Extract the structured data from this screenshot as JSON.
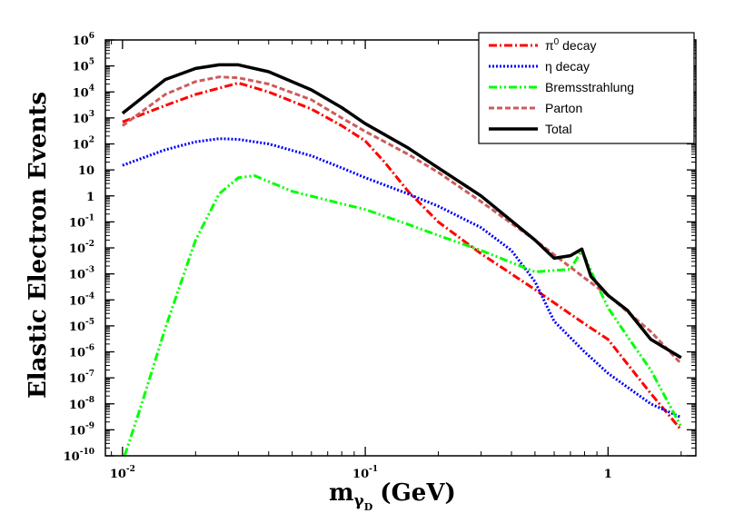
{
  "chart_data": {
    "type": "line",
    "xscale": "log",
    "yscale": "log",
    "xlim": [
      0.0085,
      2.3
    ],
    "ylim": [
      1e-10,
      1000000.0
    ],
    "xlabel": {
      "main": "m",
      "sub1": "γ",
      "sub2": "D",
      "unit": "(GeV)"
    },
    "ylabel": "Elastic Electron Events",
    "x_ticks": [
      {
        "value": 0.01,
        "base": "10",
        "exp": "-2"
      },
      {
        "value": 0.1,
        "base": "10",
        "exp": "-1"
      },
      {
        "value": 1,
        "base": "1",
        "exp": ""
      }
    ],
    "y_ticks": [
      {
        "value": 1000000.0,
        "base": "10",
        "exp": "6"
      },
      {
        "value": 100000.0,
        "base": "10",
        "exp": "5"
      },
      {
        "value": 10000.0,
        "base": "10",
        "exp": "4"
      },
      {
        "value": 1000.0,
        "base": "10",
        "exp": "3"
      },
      {
        "value": 100.0,
        "base": "10",
        "exp": "2"
      },
      {
        "value": 10,
        "base": "10",
        "exp": ""
      },
      {
        "value": 1,
        "base": "1",
        "exp": ""
      },
      {
        "value": 0.1,
        "base": "10",
        "exp": "-1"
      },
      {
        "value": 0.01,
        "base": "10",
        "exp": "-2"
      },
      {
        "value": 0.001,
        "base": "10",
        "exp": "-3"
      },
      {
        "value": 0.0001,
        "base": "10",
        "exp": "-4"
      },
      {
        "value": 1e-05,
        "base": "10",
        "exp": "-5"
      },
      {
        "value": 1e-06,
        "base": "10",
        "exp": "-6"
      },
      {
        "value": 1e-07,
        "base": "10",
        "exp": "-7"
      },
      {
        "value": 1e-08,
        "base": "10",
        "exp": "-8"
      },
      {
        "value": 1e-09,
        "base": "10",
        "exp": "-9"
      },
      {
        "value": 1e-10,
        "base": "10",
        "exp": "-10"
      }
    ],
    "legend_position": "top-right",
    "series": [
      {
        "key": "pi0",
        "name_prefix": "π",
        "name_sup": "0",
        "name_suffix": " decay",
        "color": "#ff0000",
        "dash": "9,3,2,3",
        "x": [
          0.01,
          0.015,
          0.02,
          0.025,
          0.03,
          0.04,
          0.06,
          0.08,
          0.1,
          0.12,
          0.15,
          0.2,
          0.3,
          0.5,
          0.8,
          1.0,
          1.5,
          2.0
        ],
        "y": [
          700,
          3000,
          8000,
          14000,
          22000,
          10000,
          2200,
          500,
          130,
          20,
          1.5,
          0.1,
          0.006,
          0.00025,
          1.2e-05,
          3e-06,
          2.5e-08,
          1e-09
        ]
      },
      {
        "key": "eta",
        "name_prefix": "η",
        "name_sup": "",
        "name_suffix": " decay",
        "color": "#0000ff",
        "dash": "2,2",
        "x": [
          0.01,
          0.015,
          0.02,
          0.025,
          0.03,
          0.04,
          0.06,
          0.08,
          0.1,
          0.15,
          0.2,
          0.3,
          0.4,
          0.5,
          0.6,
          0.8,
          1.0,
          1.5,
          2.0
        ],
        "y": [
          15,
          60,
          120,
          160,
          150,
          100,
          35,
          12,
          5,
          1.2,
          0.4,
          0.06,
          0.008,
          0.0005,
          1.5e-05,
          1e-06,
          1.5e-07,
          1e-08,
          3e-09
        ]
      },
      {
        "key": "brems",
        "name_prefix": "Bremsstrahlung",
        "name_sup": "",
        "name_suffix": "",
        "color": "#00ff00",
        "dash": "9,3,2,3,2,3",
        "x": [
          0.0102,
          0.012,
          0.015,
          0.02,
          0.025,
          0.03,
          0.035,
          0.05,
          0.08,
          0.1,
          0.15,
          0.2,
          0.3,
          0.5,
          0.7,
          0.78,
          0.9,
          1.0,
          1.2,
          1.5,
          2.0
        ],
        "y": [
          1e-10,
          1e-08,
          8e-06,
          0.02,
          1.2,
          5,
          6,
          1.5,
          0.5,
          0.3,
          0.08,
          0.03,
          0.008,
          0.0012,
          0.0015,
          0.008,
          0.0004,
          5e-05,
          4e-06,
          2e-07,
          1.3e-09
        ]
      },
      {
        "key": "parton",
        "name_prefix": "Parton",
        "name_sup": "",
        "name_suffix": "",
        "color": "#cd5c5c",
        "dash": "6,3",
        "x": [
          0.01,
          0.015,
          0.02,
          0.025,
          0.03,
          0.04,
          0.06,
          0.08,
          0.1,
          0.15,
          0.2,
          0.3,
          0.5,
          0.8,
          1.0,
          1.5,
          2.0
        ],
        "y": [
          500,
          8000,
          25000,
          38000,
          35000,
          20000,
          5000,
          1000,
          300,
          40,
          8,
          0.6,
          0.02,
          0.0007,
          0.00015,
          6e-06,
          3.5e-07
        ]
      },
      {
        "key": "total",
        "name_prefix": "Total",
        "name_sup": "",
        "name_suffix": "",
        "color": "#000000",
        "dash": "",
        "x": [
          0.01,
          0.015,
          0.02,
          0.025,
          0.03,
          0.04,
          0.06,
          0.08,
          0.1,
          0.15,
          0.2,
          0.3,
          0.5,
          0.6,
          0.7,
          0.78,
          0.85,
          1.0,
          1.2,
          1.5,
          2.0
        ],
        "y": [
          1500,
          30000,
          80000,
          110000,
          110000,
          60000,
          12000,
          2500,
          600,
          70,
          12,
          1,
          0.02,
          0.004,
          0.005,
          0.009,
          0.0008,
          0.00015,
          4e-05,
          3e-06,
          6e-07
        ]
      }
    ]
  }
}
